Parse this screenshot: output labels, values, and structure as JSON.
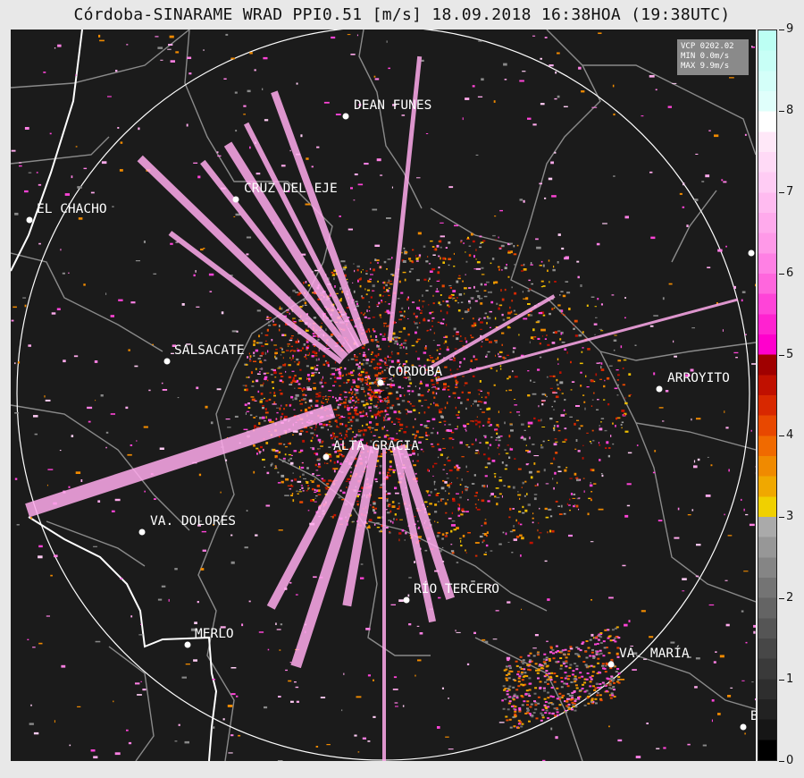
{
  "title": "Córdoba-SINARAME WRAD PPI0.51 [m/s] 18.09.2018 16:38HOA (19:38UTC)",
  "info_box": {
    "line1": "VCP 0202.02",
    "line2": "MIN 0.0m/s",
    "line3": "MAX 9.9m/s"
  },
  "cities": [
    {
      "name": "DEAN FUNES"
    },
    {
      "name": "CRUZ DEL EJE"
    },
    {
      "name": "EL CHACHO"
    },
    {
      "name": "SALSACATE"
    },
    {
      "name": "CÓRDOBA"
    },
    {
      "name": "ARROYITO"
    },
    {
      "name": "ALTA GRACIA"
    },
    {
      "name": "VA. DOLORES"
    },
    {
      "name": "RÍO TERCERO"
    },
    {
      "name": "MERLO"
    },
    {
      "name": "VA. MARÍA"
    },
    {
      "name": "B"
    }
  ],
  "colorbar": {
    "min": 0,
    "max": 9,
    "tick_labels": [
      "0",
      "1",
      "2",
      "3",
      "4",
      "5",
      "6",
      "7",
      "8",
      "9"
    ],
    "colors": [
      "#000000",
      "#161616",
      "#222222",
      "#2e2e2e",
      "#3a3a3a",
      "#474747",
      "#555555",
      "#646464",
      "#747474",
      "#858585",
      "#979797",
      "#aaaaaa",
      "#f0d000",
      "#f0a800",
      "#f08a00",
      "#f06a00",
      "#e84800",
      "#d82800",
      "#c01000",
      "#a00000",
      "#ff00cc",
      "#ff22d0",
      "#ff44d8",
      "#ff66dd",
      "#ff80e4",
      "#ff99e8",
      "#ffaaec",
      "#ffbbf0",
      "#ffccf4",
      "#ffdaf6",
      "#ffe8f8",
      "#ffffff",
      "#e0fffb",
      "#d4fff9",
      "#c8fff6",
      "#bcfff3"
    ]
  }
}
